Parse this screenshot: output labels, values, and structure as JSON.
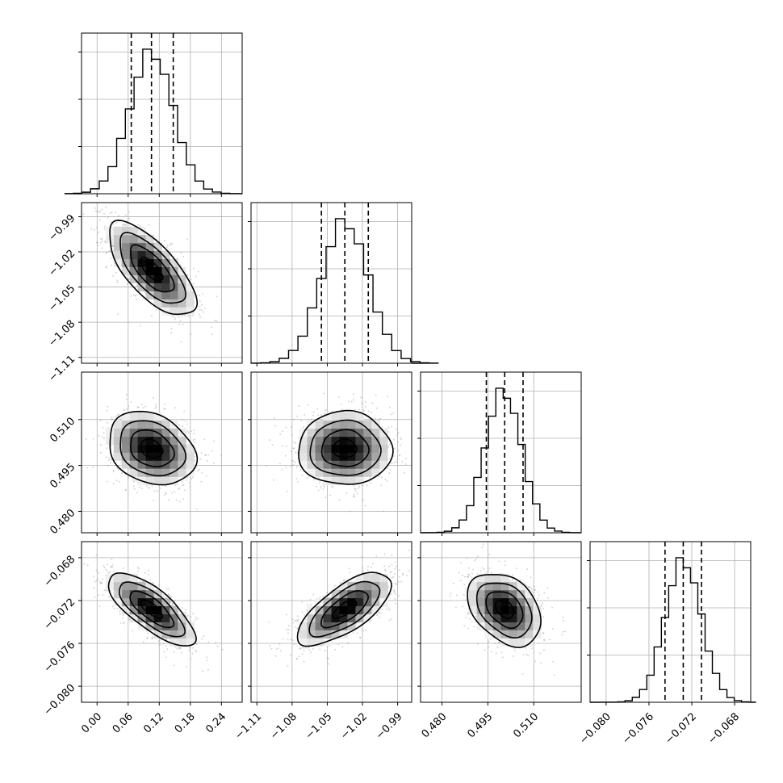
{
  "chart_data": {
    "type": "corner",
    "parameters": [
      {
        "range": [
          -0.03,
          0.28
        ],
        "ticks": [
          "0.00",
          "0.06",
          "0.12",
          "0.18",
          "0.24"
        ],
        "tick_values": [
          0.0,
          0.06,
          0.12,
          0.18,
          0.24
        ],
        "median": 0.105,
        "q16": 0.066,
        "q84": 0.147,
        "hist_peak_at": 0.105,
        "hist_sigma": 0.042
      },
      {
        "range": [
          -1.115,
          -0.978
        ],
        "ticks": [
          "-0.99",
          "-1.02",
          "-1.05",
          "-1.08",
          "-1.11"
        ],
        "tick_values": [
          -0.99,
          -1.02,
          -1.05,
          -1.08,
          -1.11
        ],
        "x_ticks": [
          "-1.11",
          "-1.08",
          "-1.05",
          "-1.02",
          "-0.99"
        ],
        "x_tick_values": [
          -1.11,
          -1.08,
          -1.05,
          -1.02,
          -0.99
        ],
        "median": -1.035,
        "q16": -1.055,
        "q84": -1.015,
        "hist_peak_at": -1.035,
        "hist_sigma": 0.02
      },
      {
        "range": [
          0.473,
          0.5255
        ],
        "ticks": [
          "0.510",
          "0.495",
          "0.480"
        ],
        "tick_values": [
          0.51,
          0.495,
          0.48
        ],
        "x_ticks": [
          "0.480",
          "0.495",
          "0.510"
        ],
        "x_tick_values": [
          0.48,
          0.495,
          0.51
        ],
        "median": 0.5005,
        "q16": 0.4945,
        "q84": 0.5065,
        "hist_peak_at": 0.5,
        "hist_sigma": 0.006
      },
      {
        "range": [
          -0.0815,
          -0.0665
        ],
        "ticks": [
          "-0.068",
          "-0.072",
          "-0.076",
          "-0.080"
        ],
        "tick_values": [
          -0.068,
          -0.072,
          -0.076,
          -0.08
        ],
        "x_ticks": [
          "-0.080",
          "-0.076",
          "-0.072",
          "-0.068"
        ],
        "x_tick_values": [
          -0.08,
          -0.076,
          -0.072,
          -0.068
        ],
        "median": -0.0728,
        "q16": -0.0745,
        "q84": -0.0711,
        "hist_peak_at": -0.0728,
        "hist_sigma": 0.0017
      }
    ],
    "correlations": {
      "1-0": -0.7,
      "2-0": -0.25,
      "2-1": 0.0,
      "3-0": -0.75,
      "3-1": 0.7,
      "3-2": -0.35
    },
    "grid": true,
    "quantile_lines": "dashed"
  }
}
